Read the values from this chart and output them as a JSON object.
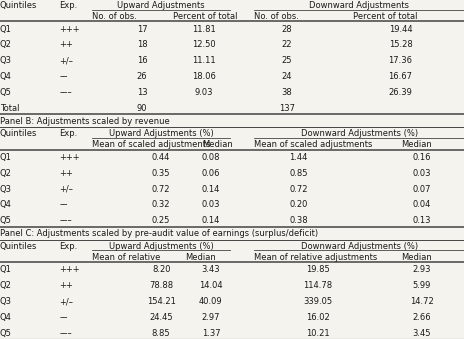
{
  "panel_b_label": "Panel B: Adjustments scaled by revenue",
  "panel_c_label": "Panel C: Adjustments scaled by pre-audit value of earnings (surplus/deficit)",
  "panel_a": {
    "rows": [
      [
        "Q1",
        "+++",
        "17",
        "11.81",
        "28",
        "19.44"
      ],
      [
        "Q2",
        "++",
        "18",
        "12.50",
        "22",
        "15.28"
      ],
      [
        "Q3",
        "+/–",
        "16",
        "11.11",
        "25",
        "17.36"
      ],
      [
        "Q4",
        "––",
        "26",
        "18.06",
        "24",
        "16.67"
      ],
      [
        "Q5",
        "–––",
        "13",
        "9.03",
        "38",
        "26.39"
      ],
      [
        "Total",
        "",
        "90",
        "",
        "137",
        ""
      ]
    ]
  },
  "panel_b": {
    "rows": [
      [
        "Q1",
        "+++",
        "0.44",
        "0.08",
        "1.44",
        "0.16"
      ],
      [
        "Q2",
        "++",
        "0.35",
        "0.06",
        "0.85",
        "0.03"
      ],
      [
        "Q3",
        "+/–",
        "0.72",
        "0.14",
        "0.72",
        "0.07"
      ],
      [
        "Q4",
        "––",
        "0.32",
        "0.03",
        "0.20",
        "0.04"
      ],
      [
        "Q5",
        "–––",
        "0.25",
        "0.14",
        "0.38",
        "0.13"
      ]
    ]
  },
  "panel_c": {
    "rows": [
      [
        "Q1",
        "+++",
        "8.20",
        "3.43",
        "19.85",
        "2.93"
      ],
      [
        "Q2",
        "++",
        "78.88",
        "14.04",
        "114.78",
        "5.99"
      ],
      [
        "Q3",
        "+/–",
        "154.21",
        "40.09",
        "339.05",
        "14.72"
      ],
      [
        "Q4",
        "––",
        "24.45",
        "2.97",
        "16.02",
        "2.66"
      ],
      [
        "Q5",
        "–––",
        "8.85",
        "1.37",
        "10.21",
        "3.45"
      ]
    ]
  },
  "bg_color": "#f5f3ee",
  "text_color": "#1a1a1a",
  "font_size": 6.0
}
